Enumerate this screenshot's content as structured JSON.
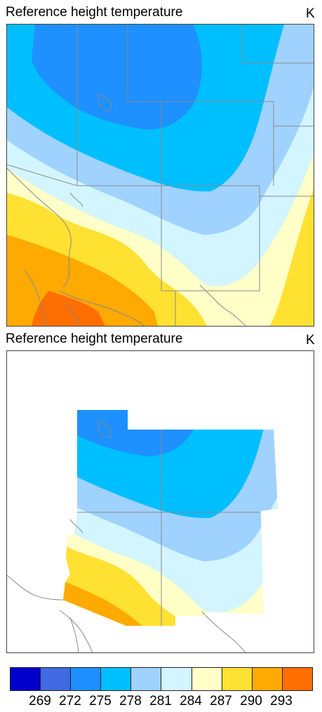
{
  "panels": [
    {
      "title": "Reference height temperature",
      "unit": "K"
    },
    {
      "title": "Reference height temperature",
      "unit": "K"
    }
  ],
  "colorbar": {
    "colors": [
      "#0000cd",
      "#4169e1",
      "#1e90ff",
      "#00bfff",
      "#a0d2ff",
      "#d2f5ff",
      "#ffffc8",
      "#ffe132",
      "#ffaa00",
      "#ff6e00"
    ],
    "ticks": [
      "269",
      "272",
      "275",
      "278",
      "281",
      "284",
      "287",
      "290",
      "293"
    ]
  }
}
